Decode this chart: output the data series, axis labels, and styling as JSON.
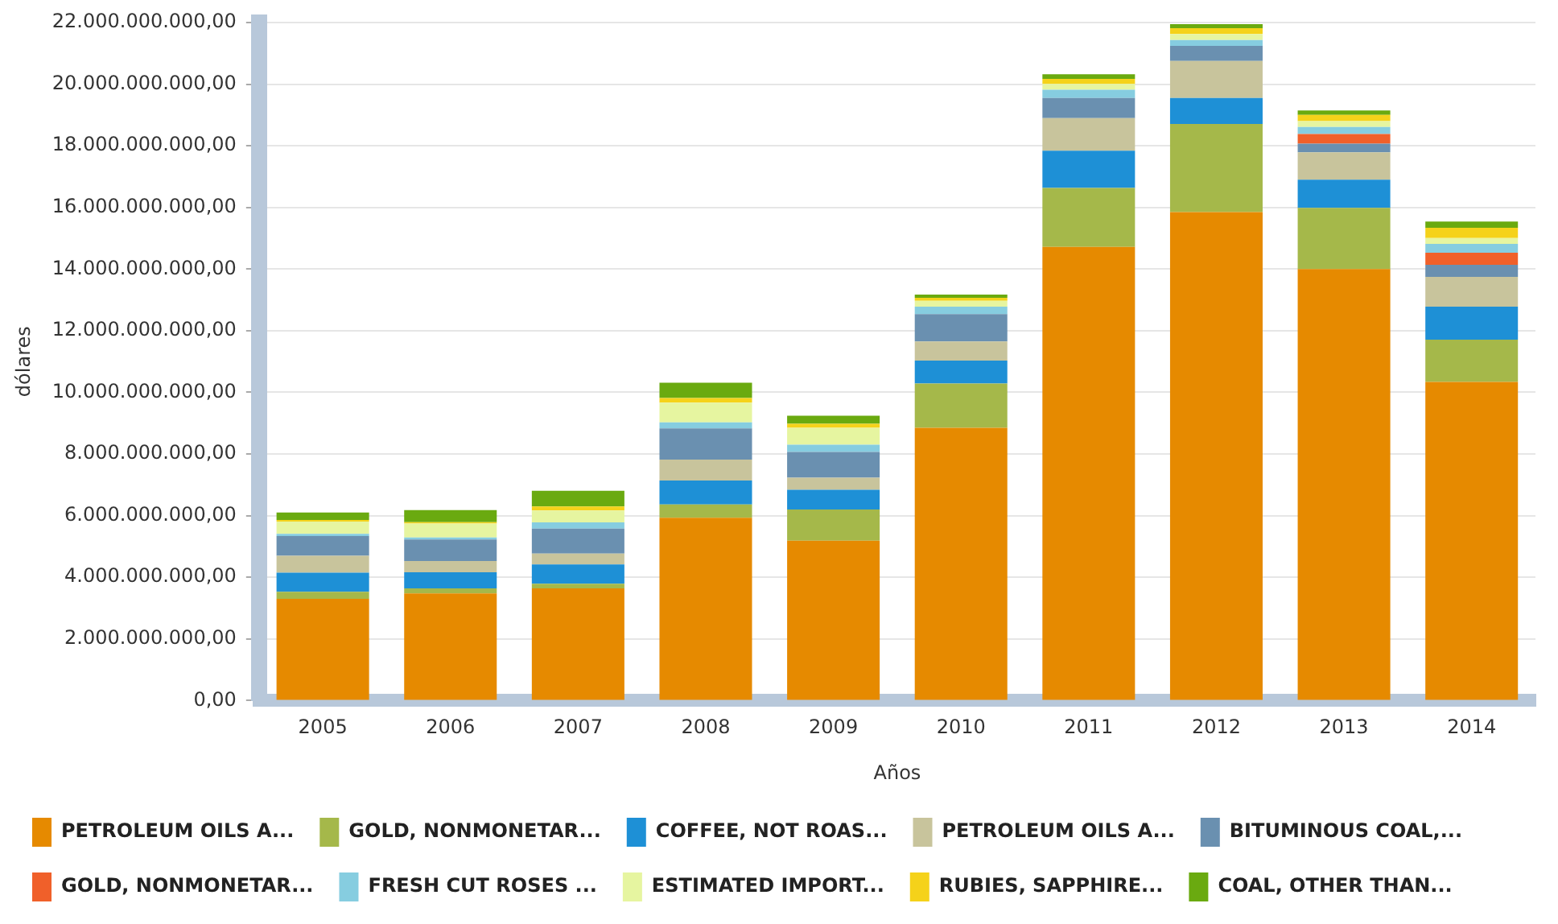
{
  "chart_data": {
    "type": "bar",
    "stacked": true,
    "xlabel": "Años",
    "ylabel": "dólares",
    "categories": [
      "2005",
      "2006",
      "2007",
      "2008",
      "2009",
      "2010",
      "2011",
      "2012",
      "2013",
      "2014"
    ],
    "series": [
      {
        "name": "PETROLEUM OILS A...",
        "color": "#e68a00",
        "values": [
          3300000000.0,
          3480000000.0,
          3640000000.0,
          5930000000.0,
          5190000000.0,
          8850000000.0,
          14720000000.0,
          15850000000.0,
          14000000000.0,
          10340000000.0
        ]
      },
      {
        "name": "GOLD, NONMONETAR...",
        "color": "#a5b84a",
        "values": [
          230000000.0,
          160000000.0,
          150000000.0,
          430000000.0,
          1010000000.0,
          1440000000.0,
          1910000000.0,
          2860000000.0,
          1990000000.0,
          1370000000.0
        ]
      },
      {
        "name": "COFFEE, NOT ROAS...",
        "color": "#1e90d6",
        "values": [
          620000000.0,
          520000000.0,
          630000000.0,
          780000000.0,
          640000000.0,
          740000000.0,
          1210000000.0,
          840000000.0,
          910000000.0,
          1070000000.0
        ]
      },
      {
        "name": "PETROLEUM OILS A...",
        "color": "#c8c49c",
        "values": [
          550000000.0,
          370000000.0,
          350000000.0,
          680000000.0,
          390000000.0,
          620000000.0,
          1060000000.0,
          1200000000.0,
          890000000.0,
          970000000.0
        ]
      },
      {
        "name": "BITUMINOUS COAL,...",
        "color": "#6a90b0",
        "values": [
          640000000.0,
          700000000.0,
          810000000.0,
          1010000000.0,
          840000000.0,
          890000000.0,
          650000000.0,
          490000000.0,
          280000000.0,
          390000000.0
        ]
      },
      {
        "name": "GOLD, NONMONETAR...",
        "color": "#f0602a",
        "values": [
          0,
          0,
          0,
          0,
          0,
          0,
          0,
          0,
          310000000.0,
          390000000.0
        ]
      },
      {
        "name": "FRESH CUT ROSES ...",
        "color": "#86cde0",
        "values": [
          70000000.0,
          60000000.0,
          200000000.0,
          200000000.0,
          230000000.0,
          240000000.0,
          270000000.0,
          190000000.0,
          230000000.0,
          290000000.0
        ]
      },
      {
        "name": "ESTIMATED IMPORT...",
        "color": "#e6f5a0",
        "values": [
          400000000.0,
          450000000.0,
          390000000.0,
          640000000.0,
          550000000.0,
          190000000.0,
          190000000.0,
          200000000.0,
          190000000.0,
          190000000.0
        ]
      },
      {
        "name": "RUBIES, SAPPHIRE...",
        "color": "#f5d21a",
        "values": [
          50000000.0,
          50000000.0,
          130000000.0,
          150000000.0,
          130000000.0,
          100000000.0,
          160000000.0,
          190000000.0,
          200000000.0,
          330000000.0
        ]
      },
      {
        "name": "COAL, OTHER THAN...",
        "color": "#6aaa10",
        "values": [
          240000000.0,
          390000000.0,
          510000000.0,
          490000000.0,
          260000000.0,
          100000000.0,
          150000000.0,
          130000000.0,
          150000000.0,
          200000000.0
        ]
      }
    ],
    "ylim": [
      0,
      22000000000
    ],
    "yticks": [
      {
        "value": 0,
        "label": "0,00"
      },
      {
        "value": 2000000000,
        "label": "2.000.000.000,00"
      },
      {
        "value": 4000000000,
        "label": "4.000.000.000,00"
      },
      {
        "value": 6000000000,
        "label": "6.000.000.000,00"
      },
      {
        "value": 8000000000,
        "label": "8.000.000.000,00"
      },
      {
        "value": 10000000000,
        "label": "10.000.000.000,00"
      },
      {
        "value": 12000000000,
        "label": "12.000.000.000,00"
      },
      {
        "value": 14000000000,
        "label": "14.000.000.000,00"
      },
      {
        "value": 16000000000,
        "label": "16.000.000.000,00"
      },
      {
        "value": 18000000000,
        "label": "18.000.000.000,00"
      },
      {
        "value": 20000000000,
        "label": "20.000.000.000,00"
      },
      {
        "value": 22000000000,
        "label": "22.000.000.000,00"
      }
    ],
    "grid": "y",
    "legend": "bottom"
  }
}
